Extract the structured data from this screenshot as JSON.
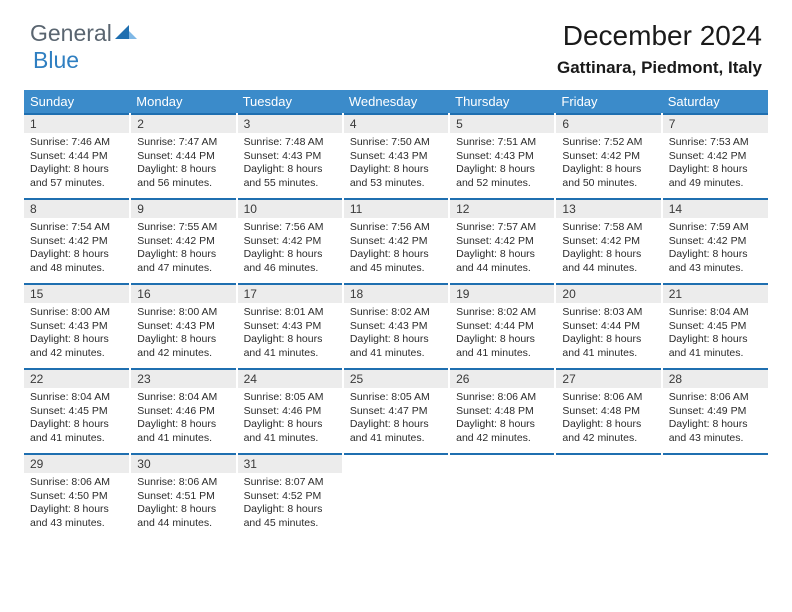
{
  "logo": {
    "text1": "General",
    "text2": "Blue"
  },
  "title": "December 2024",
  "location": "Gattinara, Piedmont, Italy",
  "colors": {
    "header_bg": "#3b8bca",
    "header_text": "#ffffff",
    "daynum_bg": "#ececec",
    "row_border": "#1f6fb0",
    "logo_gray": "#5a6570",
    "logo_blue": "#2f7fc1"
  },
  "day_headers": [
    "Sunday",
    "Monday",
    "Tuesday",
    "Wednesday",
    "Thursday",
    "Friday",
    "Saturday"
  ],
  "weeks": [
    [
      {
        "n": "1",
        "sr": "Sunrise: 7:46 AM",
        "ss": "Sunset: 4:44 PM",
        "dl": "Daylight: 8 hours and 57 minutes."
      },
      {
        "n": "2",
        "sr": "Sunrise: 7:47 AM",
        "ss": "Sunset: 4:44 PM",
        "dl": "Daylight: 8 hours and 56 minutes."
      },
      {
        "n": "3",
        "sr": "Sunrise: 7:48 AM",
        "ss": "Sunset: 4:43 PM",
        "dl": "Daylight: 8 hours and 55 minutes."
      },
      {
        "n": "4",
        "sr": "Sunrise: 7:50 AM",
        "ss": "Sunset: 4:43 PM",
        "dl": "Daylight: 8 hours and 53 minutes."
      },
      {
        "n": "5",
        "sr": "Sunrise: 7:51 AM",
        "ss": "Sunset: 4:43 PM",
        "dl": "Daylight: 8 hours and 52 minutes."
      },
      {
        "n": "6",
        "sr": "Sunrise: 7:52 AM",
        "ss": "Sunset: 4:42 PM",
        "dl": "Daylight: 8 hours and 50 minutes."
      },
      {
        "n": "7",
        "sr": "Sunrise: 7:53 AM",
        "ss": "Sunset: 4:42 PM",
        "dl": "Daylight: 8 hours and 49 minutes."
      }
    ],
    [
      {
        "n": "8",
        "sr": "Sunrise: 7:54 AM",
        "ss": "Sunset: 4:42 PM",
        "dl": "Daylight: 8 hours and 48 minutes."
      },
      {
        "n": "9",
        "sr": "Sunrise: 7:55 AM",
        "ss": "Sunset: 4:42 PM",
        "dl": "Daylight: 8 hours and 47 minutes."
      },
      {
        "n": "10",
        "sr": "Sunrise: 7:56 AM",
        "ss": "Sunset: 4:42 PM",
        "dl": "Daylight: 8 hours and 46 minutes."
      },
      {
        "n": "11",
        "sr": "Sunrise: 7:56 AM",
        "ss": "Sunset: 4:42 PM",
        "dl": "Daylight: 8 hours and 45 minutes."
      },
      {
        "n": "12",
        "sr": "Sunrise: 7:57 AM",
        "ss": "Sunset: 4:42 PM",
        "dl": "Daylight: 8 hours and 44 minutes."
      },
      {
        "n": "13",
        "sr": "Sunrise: 7:58 AM",
        "ss": "Sunset: 4:42 PM",
        "dl": "Daylight: 8 hours and 44 minutes."
      },
      {
        "n": "14",
        "sr": "Sunrise: 7:59 AM",
        "ss": "Sunset: 4:42 PM",
        "dl": "Daylight: 8 hours and 43 minutes."
      }
    ],
    [
      {
        "n": "15",
        "sr": "Sunrise: 8:00 AM",
        "ss": "Sunset: 4:43 PM",
        "dl": "Daylight: 8 hours and 42 minutes."
      },
      {
        "n": "16",
        "sr": "Sunrise: 8:00 AM",
        "ss": "Sunset: 4:43 PM",
        "dl": "Daylight: 8 hours and 42 minutes."
      },
      {
        "n": "17",
        "sr": "Sunrise: 8:01 AM",
        "ss": "Sunset: 4:43 PM",
        "dl": "Daylight: 8 hours and 41 minutes."
      },
      {
        "n": "18",
        "sr": "Sunrise: 8:02 AM",
        "ss": "Sunset: 4:43 PM",
        "dl": "Daylight: 8 hours and 41 minutes."
      },
      {
        "n": "19",
        "sr": "Sunrise: 8:02 AM",
        "ss": "Sunset: 4:44 PM",
        "dl": "Daylight: 8 hours and 41 minutes."
      },
      {
        "n": "20",
        "sr": "Sunrise: 8:03 AM",
        "ss": "Sunset: 4:44 PM",
        "dl": "Daylight: 8 hours and 41 minutes."
      },
      {
        "n": "21",
        "sr": "Sunrise: 8:04 AM",
        "ss": "Sunset: 4:45 PM",
        "dl": "Daylight: 8 hours and 41 minutes."
      }
    ],
    [
      {
        "n": "22",
        "sr": "Sunrise: 8:04 AM",
        "ss": "Sunset: 4:45 PM",
        "dl": "Daylight: 8 hours and 41 minutes."
      },
      {
        "n": "23",
        "sr": "Sunrise: 8:04 AM",
        "ss": "Sunset: 4:46 PM",
        "dl": "Daylight: 8 hours and 41 minutes."
      },
      {
        "n": "24",
        "sr": "Sunrise: 8:05 AM",
        "ss": "Sunset: 4:46 PM",
        "dl": "Daylight: 8 hours and 41 minutes."
      },
      {
        "n": "25",
        "sr": "Sunrise: 8:05 AM",
        "ss": "Sunset: 4:47 PM",
        "dl": "Daylight: 8 hours and 41 minutes."
      },
      {
        "n": "26",
        "sr": "Sunrise: 8:06 AM",
        "ss": "Sunset: 4:48 PM",
        "dl": "Daylight: 8 hours and 42 minutes."
      },
      {
        "n": "27",
        "sr": "Sunrise: 8:06 AM",
        "ss": "Sunset: 4:48 PM",
        "dl": "Daylight: 8 hours and 42 minutes."
      },
      {
        "n": "28",
        "sr": "Sunrise: 8:06 AM",
        "ss": "Sunset: 4:49 PM",
        "dl": "Daylight: 8 hours and 43 minutes."
      }
    ],
    [
      {
        "n": "29",
        "sr": "Sunrise: 8:06 AM",
        "ss": "Sunset: 4:50 PM",
        "dl": "Daylight: 8 hours and 43 minutes."
      },
      {
        "n": "30",
        "sr": "Sunrise: 8:06 AM",
        "ss": "Sunset: 4:51 PM",
        "dl": "Daylight: 8 hours and 44 minutes."
      },
      {
        "n": "31",
        "sr": "Sunrise: 8:07 AM",
        "ss": "Sunset: 4:52 PM",
        "dl": "Daylight: 8 hours and 45 minutes."
      },
      null,
      null,
      null,
      null
    ]
  ]
}
